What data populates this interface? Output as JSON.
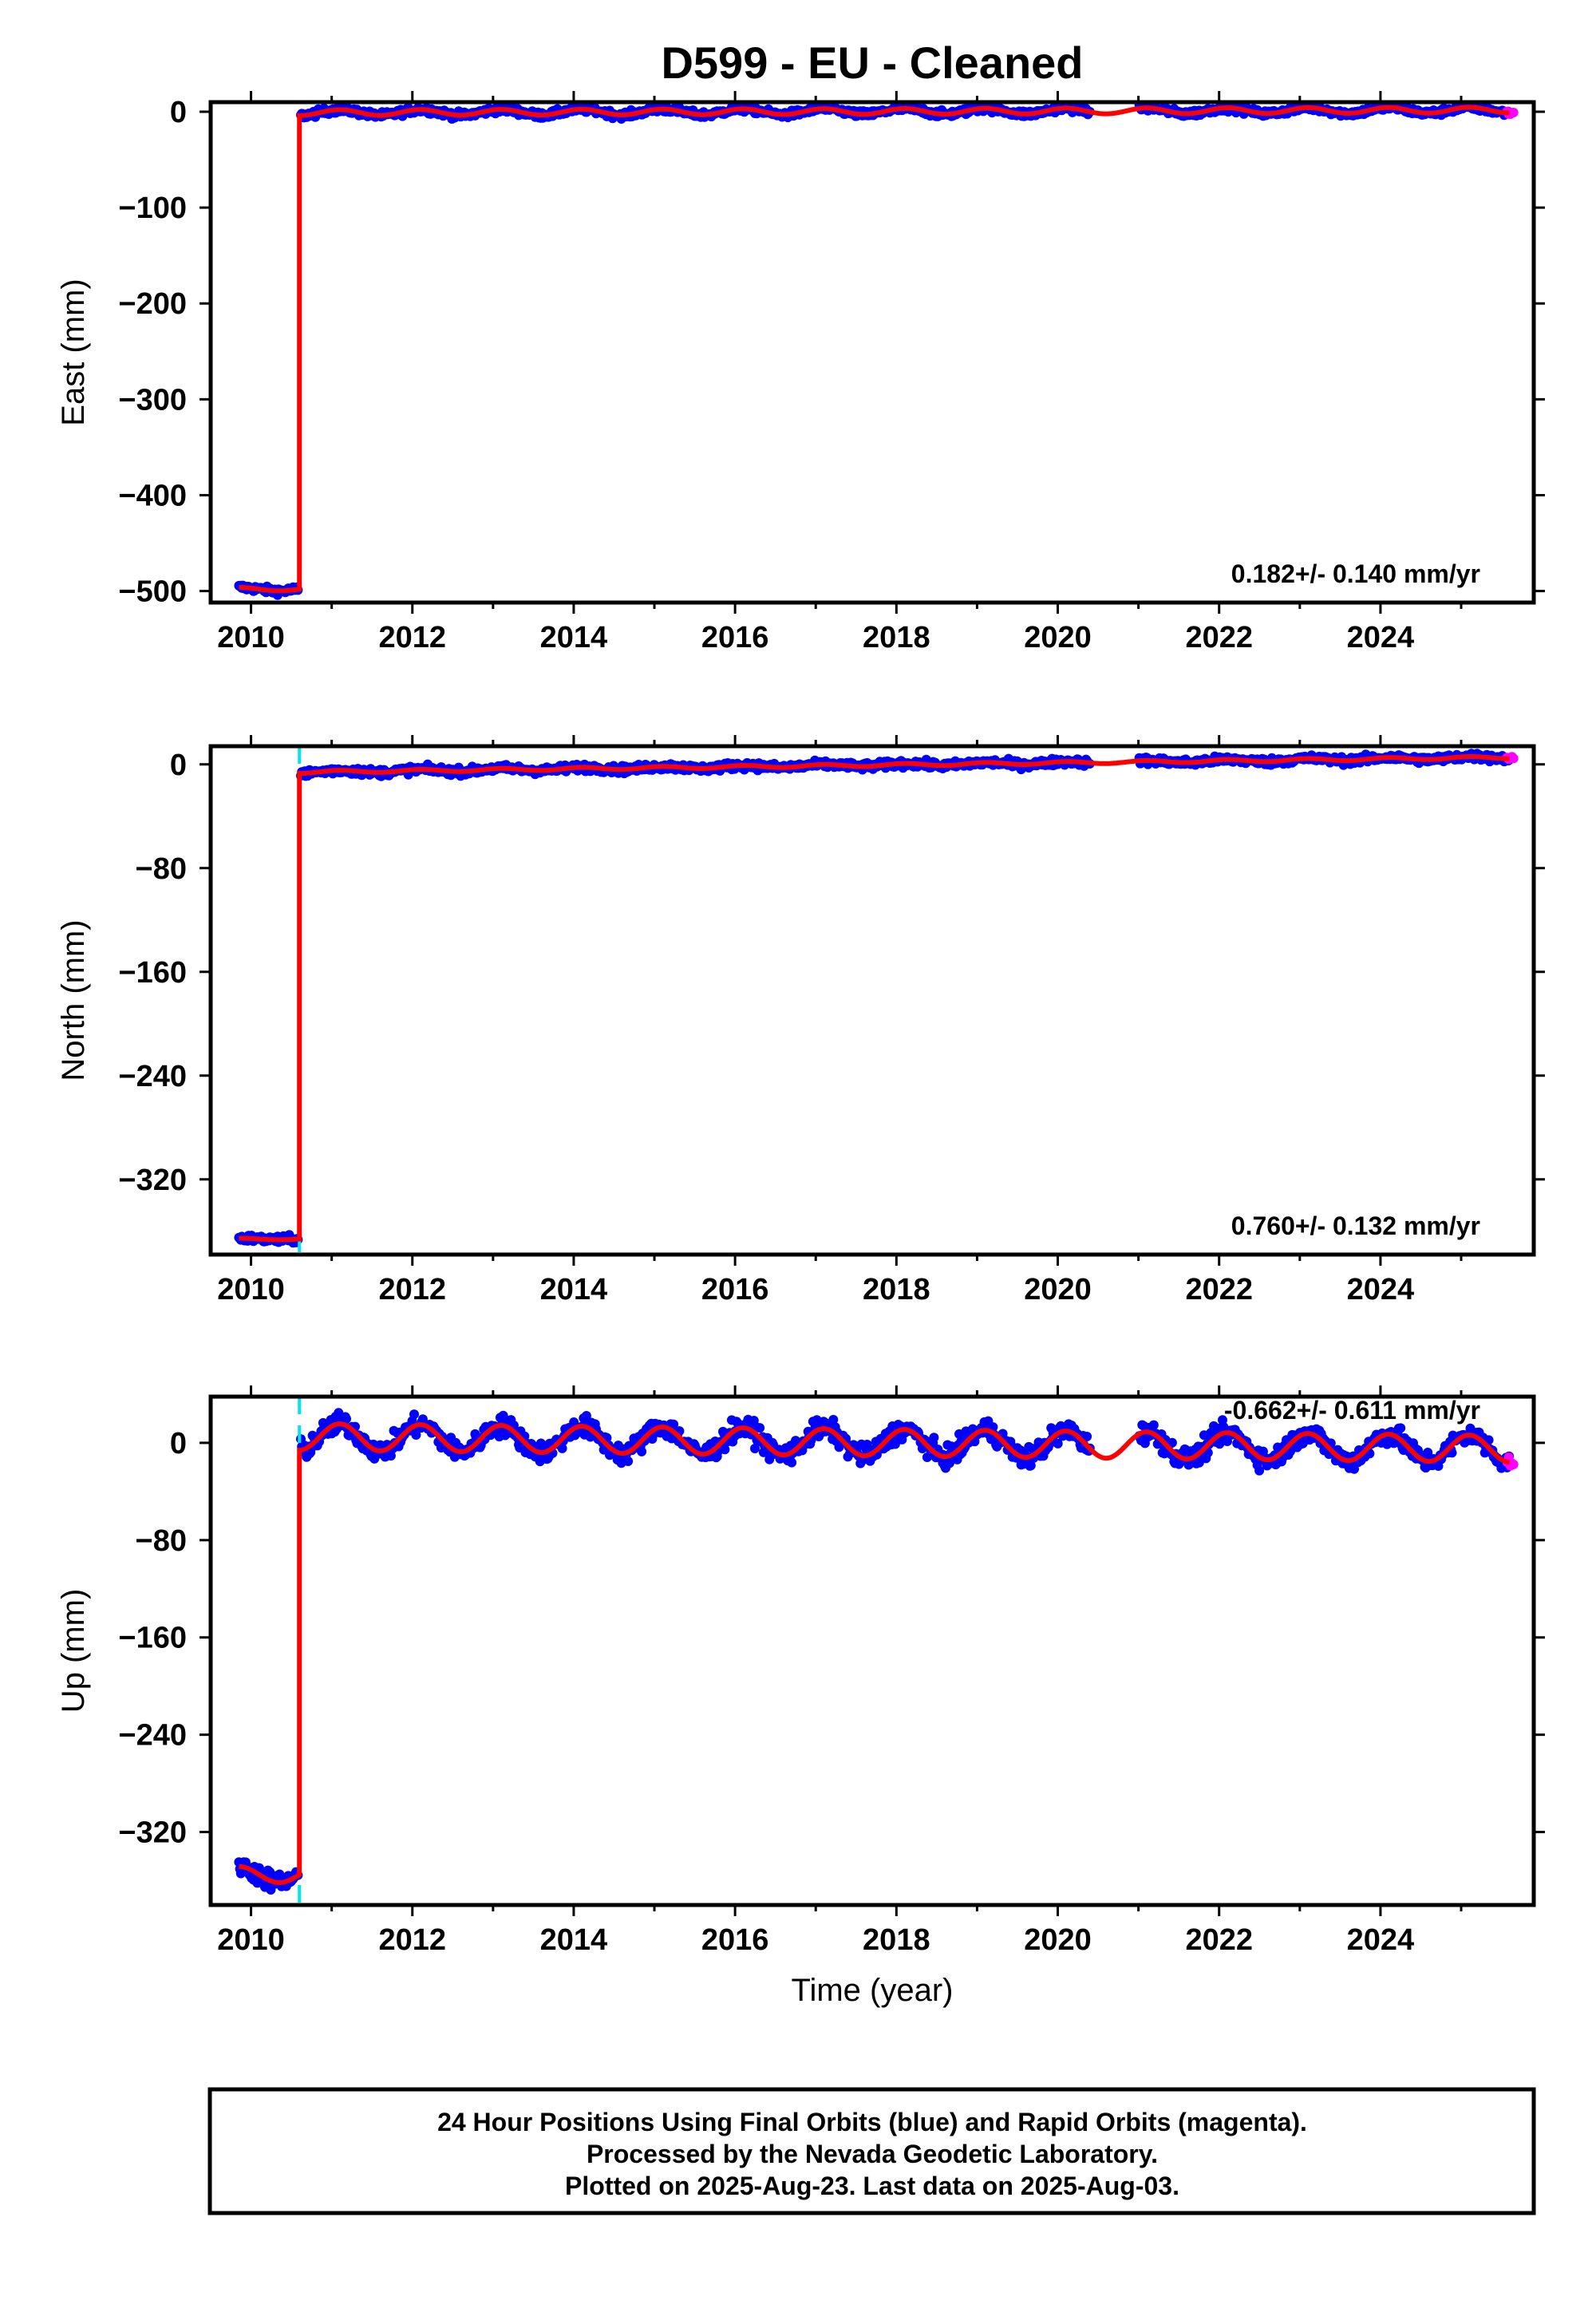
{
  "title": "D599  - EU - Cleaned",
  "colors": {
    "final_orbits": "#0000ff",
    "rapid_orbits": "#ff00ff",
    "model_fit": "#ff0000",
    "offset_marker": "#00e5ee",
    "frame": "#000000"
  },
  "footer": {
    "line1": "24 Hour Positions Using Final Orbits (blue) and Rapid Orbits (magenta).",
    "line2": "Processed by the Nevada Geodetic Laboratory.",
    "line3": "Plotted on 2025-Aug-23. Last data on 2025-Aug-03."
  },
  "chart_data": [
    {
      "type": "scatter",
      "component": "East",
      "ylabel": "East (mm)",
      "xlabel": "",
      "xlim": [
        2009.5,
        2025.9
      ],
      "ylim": [
        -512,
        10
      ],
      "xticks": [
        2010,
        2012,
        2014,
        2016,
        2018,
        2020,
        2022,
        2024
      ],
      "yticks": [
        0,
        -100,
        -200,
        -300,
        -400,
        -500
      ],
      "ytick_labels": [
        "0",
        "−100",
        "−200",
        "−300",
        "−400",
        "−500"
      ],
      "rate_label": "0.182+/- 0.140 mm/yr",
      "rate_mm_per_yr": 0.182,
      "rate_sigma": 0.14,
      "data_start": 2009.85,
      "offset_epoch": 2010.6,
      "pre_offset_level": -498,
      "post_offset_level": -1,
      "seasonal_amplitude": 3,
      "gap": [
        2020.4,
        2021.0
      ],
      "noise": 2.5,
      "offset_marker": false,
      "data_end": 2025.6
    },
    {
      "type": "scatter",
      "component": "North",
      "ylabel": "North (mm)",
      "xlabel": "",
      "xlim": [
        2009.5,
        2025.9
      ],
      "ylim": [
        -378,
        14
      ],
      "xticks": [
        2010,
        2012,
        2014,
        2016,
        2018,
        2020,
        2022,
        2024
      ],
      "yticks": [
        0,
        -80,
        -160,
        -240,
        -320
      ],
      "ytick_labels": [
        "0",
        "−80",
        "−160",
        "−240",
        "−320"
      ],
      "rate_label": "0.760+/- 0.132 mm/yr",
      "rate_mm_per_yr": 0.76,
      "rate_sigma": 0.132,
      "data_start": 2009.85,
      "offset_epoch": 2010.6,
      "pre_offset_level": -366,
      "post_offset_level": -6,
      "seasonal_amplitude": 1,
      "gap": [
        2020.4,
        2021.0
      ],
      "noise": 2,
      "offset_marker": true,
      "data_end": 2025.6
    },
    {
      "type": "scatter",
      "component": "Up",
      "ylabel": "Up (mm)",
      "xlabel": "Time (year)",
      "xlim": [
        2009.5,
        2025.9
      ],
      "ylim": [
        -380,
        38
      ],
      "xticks": [
        2010,
        2012,
        2014,
        2016,
        2018,
        2020,
        2022,
        2024
      ],
      "yticks": [
        0,
        -80,
        -160,
        -240,
        -320
      ],
      "ytick_labels": [
        "0",
        "−80",
        "−160",
        "−240",
        "−320"
      ],
      "rate_label": "-0.662+/- 0.611 mm/yr",
      "rate_mm_per_yr": -0.662,
      "rate_sigma": 0.611,
      "data_start": 2009.85,
      "offset_epoch": 2010.6,
      "pre_offset_level": -355,
      "post_offset_level": 5,
      "seasonal_amplitude": 11,
      "gap": [
        2020.4,
        2021.0
      ],
      "noise": 6,
      "offset_marker": true,
      "data_end": 2025.6
    }
  ]
}
